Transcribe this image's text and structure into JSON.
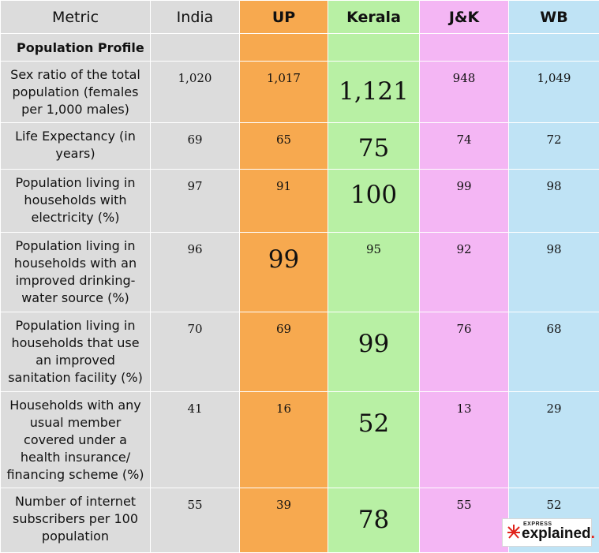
{
  "header": {
    "metric": "Metric",
    "india": "India",
    "up": "UP",
    "kerala": "Kerala",
    "jk": "J&K",
    "wb": "WB"
  },
  "section_title": "Population Profile",
  "rows": [
    {
      "metric": "Sex ratio of the total population (females per 1,000 males)",
      "india": "1,020",
      "up": "1,017",
      "kerala": "1,121",
      "jk": "948",
      "wb": "1,049"
    },
    {
      "metric": "Life Expectancy (in years)",
      "india": "69",
      "up": "65",
      "kerala": "75",
      "jk": "74",
      "wb": "72"
    },
    {
      "metric": "Population living in households with electricity (%)",
      "india": "97",
      "up": "91",
      "kerala": "100",
      "jk": "99",
      "wb": "98"
    },
    {
      "metric": "Population living in households with an improved drinking-water source (%)",
      "india": "96",
      "up": "99",
      "kerala": "95",
      "jk": "92",
      "wb": "98"
    },
    {
      "metric": "Population living in households that use an improved sanitation facility (%)",
      "india": "70",
      "up": "69",
      "kerala": "99",
      "jk": "76",
      "wb": "68"
    },
    {
      "metric": "Households with any usual member covered under a health insurance/ financing scheme (%)",
      "india": "41",
      "up": "16",
      "kerala": "52",
      "jk": "13",
      "wb": "29"
    },
    {
      "metric": "Number of internet subscribers per 100 population",
      "india": "55",
      "up": "39",
      "kerala": "78",
      "jk": "55",
      "wb": "52"
    }
  ],
  "highlights": {
    "row0": "kerala",
    "row1": "kerala",
    "row2": "kerala",
    "row3": "up",
    "row4": "kerala",
    "row5": "kerala",
    "row6": "kerala"
  },
  "logo": {
    "top_text": "EXPRESS",
    "main_text": "explained",
    "dot": "."
  },
  "colors": {
    "metric_col": "#dcdcdc",
    "up_col": "#f7a94f",
    "kerala_col": "#b8f0a4",
    "jk_col": "#f4b6f4",
    "wb_col": "#bfe3f5",
    "logo_accent": "#e0231b"
  }
}
